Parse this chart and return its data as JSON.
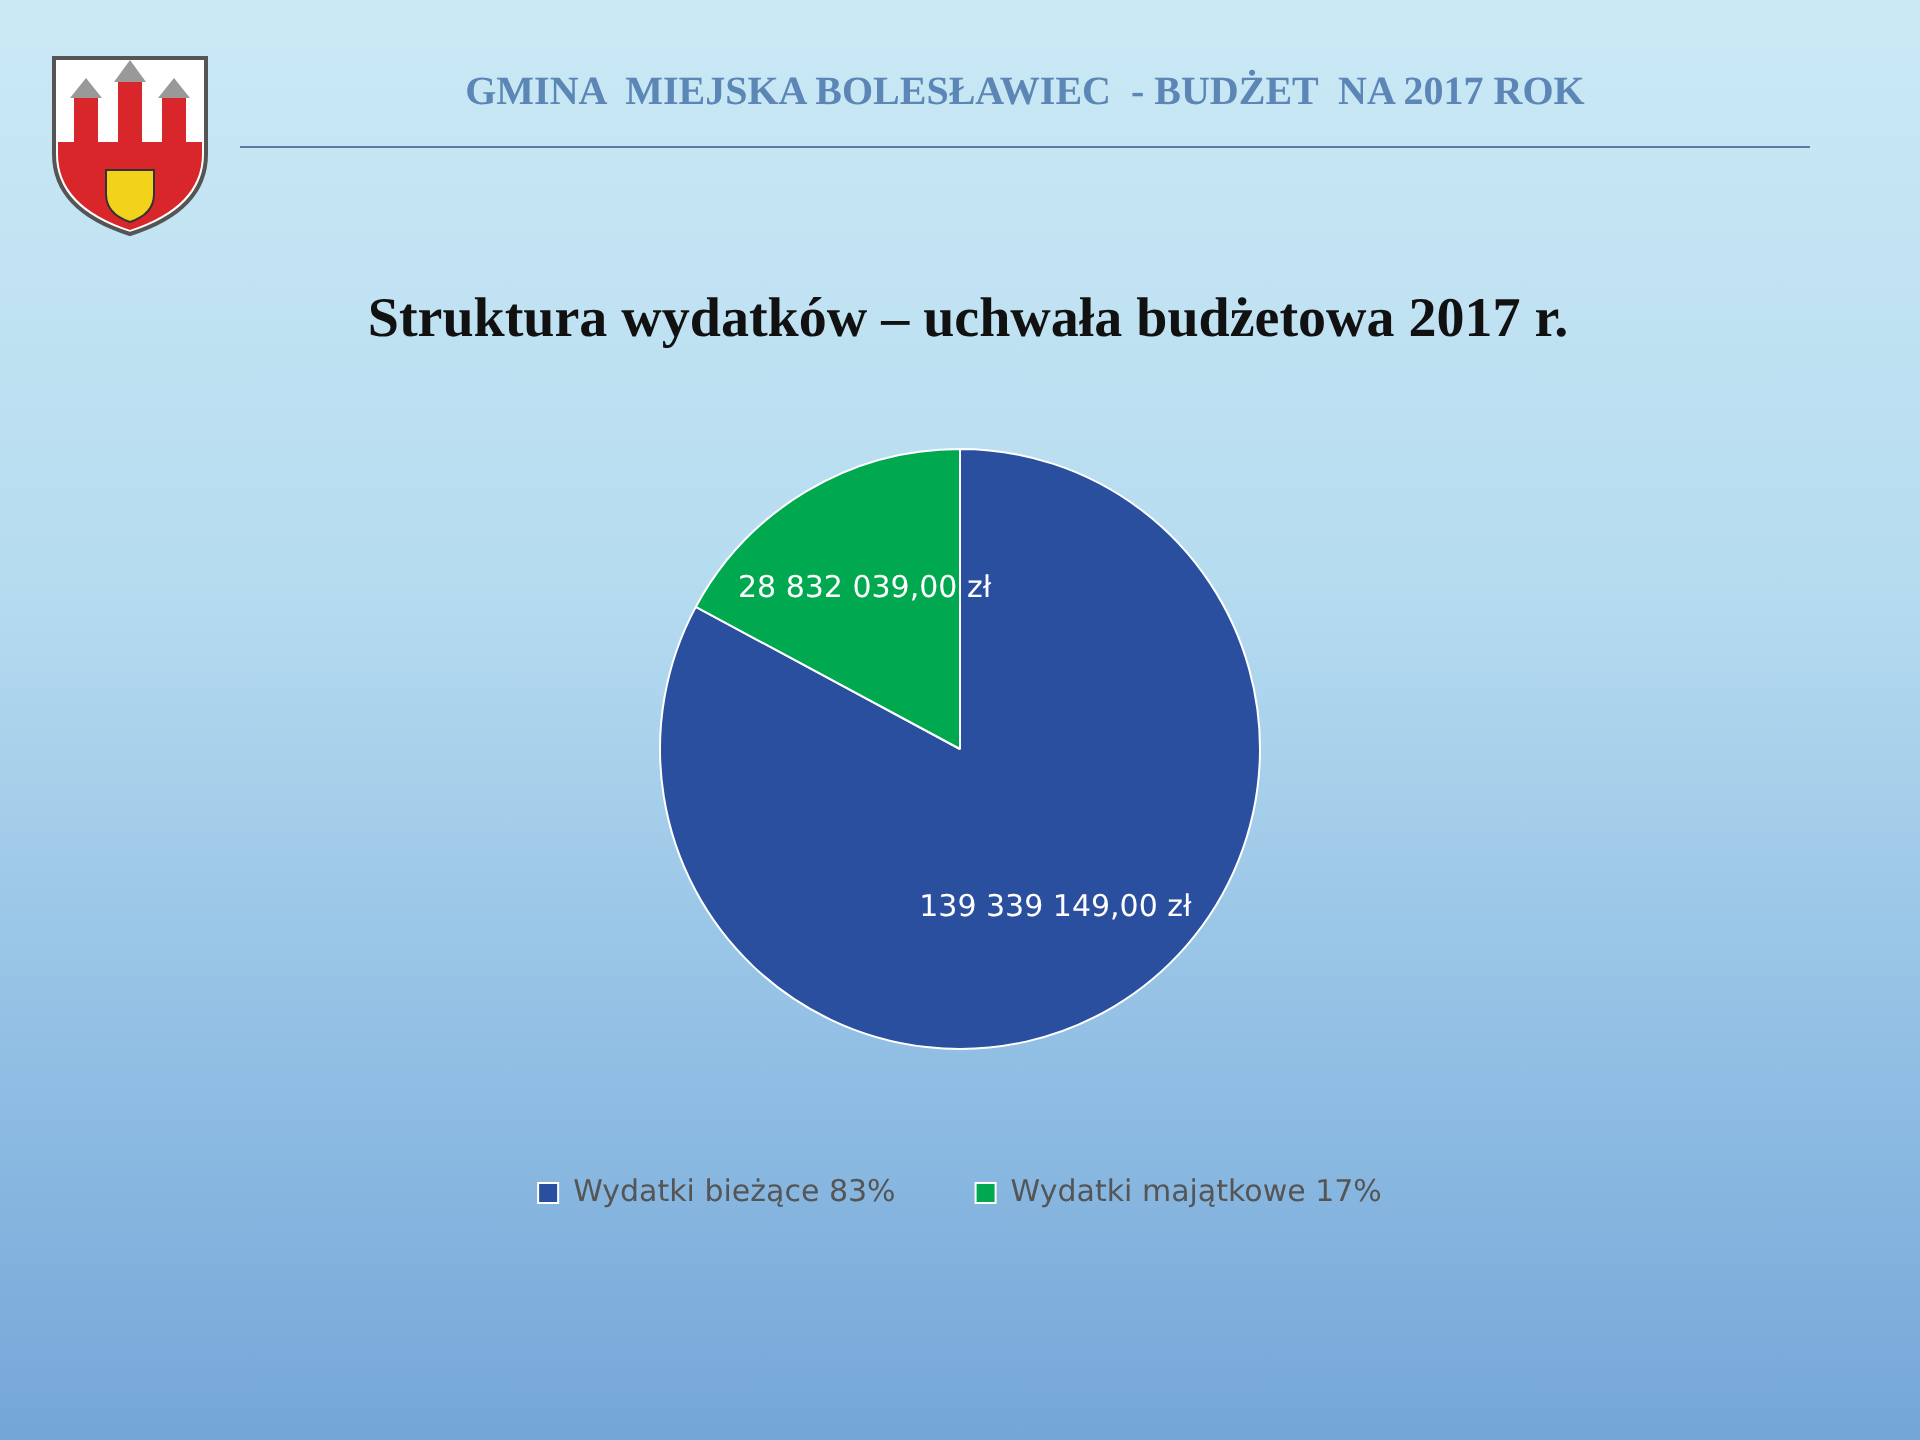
{
  "chart_data": {
    "type": "pie",
    "title": "Struktura wydatków – uchwała budżetowa 2017 r.",
    "annotations": [
      "GMINA  MIEJSKA BOLESŁAWIEC  - BUDŻET  NA 2017 ROK"
    ],
    "categories": [
      "Wydatki bieżące 83%",
      "Wydatki majątkowe 17%"
    ],
    "values": [
      139339149,
      28832039
    ],
    "colors": [
      "#2b4f9f",
      "#00a94f"
    ],
    "value_labels": [
      "139 339 149,00 zł",
      "28 832 039,00 zł"
    ],
    "legend": "bottom"
  }
}
